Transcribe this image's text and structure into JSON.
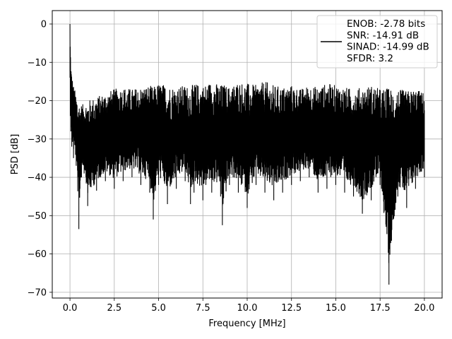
{
  "chart_data": {
    "type": "line",
    "xlabel": "Frequency [MHz]",
    "ylabel": "PSD [dB]",
    "xlim": [
      -1.0,
      21.0
    ],
    "ylim": [
      -71.5,
      3.5
    ],
    "x_ticks": [
      0.0,
      2.5,
      5.0,
      7.5,
      10.0,
      12.5,
      15.0,
      17.5,
      20.0
    ],
    "x_tick_labels": [
      "0.0",
      "2.5",
      "5.0",
      "7.5",
      "10.0",
      "12.5",
      "15.0",
      "17.5",
      "20.0"
    ],
    "y_ticks": [
      0,
      -10,
      -20,
      -30,
      -40,
      -50,
      -60,
      -70
    ],
    "y_tick_labels": [
      "0",
      "−10",
      "−20",
      "−30",
      "−40",
      "−50",
      "−60",
      "−70"
    ],
    "grid": true,
    "legend_position": "top-right",
    "legend_lines": [
      "ENOB: -2.78 bits",
      "SNR: -14.91 dB",
      "SINAD: -14.99 dB",
      "SFDR: 3.2"
    ],
    "series": [
      {
        "color": "#000000",
        "x": [
          0.0,
          0.02,
          0.05,
          0.1,
          0.2,
          0.35,
          0.5,
          0.65,
          0.8,
          1.0,
          1.5,
          2.0,
          2.5,
          3.0,
          3.5,
          4.0,
          4.5,
          4.7,
          5.0,
          5.5,
          6.0,
          6.5,
          6.8,
          7.0,
          7.5,
          8.0,
          8.5,
          8.6,
          9.0,
          9.5,
          10.0,
          10.5,
          11.0,
          11.5,
          12.0,
          12.5,
          13.0,
          13.5,
          14.0,
          14.5,
          15.0,
          15.5,
          16.0,
          16.5,
          17.0,
          17.5,
          18.0,
          18.5,
          19.0,
          19.5,
          20.0
        ],
        "upper": [
          0.0,
          -5.0,
          -10.0,
          -13.0,
          -16.0,
          -18.5,
          -20.0,
          -21.0,
          -21.0,
          -20.0,
          -19.0,
          -18.0,
          -17.0,
          -16.5,
          -17.0,
          -16.5,
          -16.0,
          -16.5,
          -15.5,
          -16.0,
          -16.5,
          -16.0,
          -16.5,
          -15.5,
          -16.0,
          -15.0,
          -16.0,
          -15.5,
          -16.5,
          -15.0,
          -15.5,
          -16.0,
          -15.0,
          -16.0,
          -16.5,
          -16.0,
          -17.0,
          -16.0,
          -16.5,
          -15.5,
          -16.0,
          -16.5,
          -17.0,
          -16.5,
          -16.0,
          -17.0,
          -16.5,
          -17.0,
          -17.5,
          -17.0,
          -18.0
        ],
        "lower": [
          -14.0,
          -24.0,
          -28.0,
          -32.0,
          -35.0,
          -37.0,
          -53.5,
          -40.0,
          -39.0,
          -47.5,
          -43.5,
          -41.0,
          -43.0,
          -41.0,
          -40.0,
          -42.0,
          -44.0,
          -51.0,
          -42.0,
          -47.0,
          -43.0,
          -41.0,
          -47.0,
          -44.0,
          -46.0,
          -44.0,
          -45.0,
          -52.5,
          -42.0,
          -44.0,
          -48.0,
          -42.0,
          -44.0,
          -46.0,
          -44.0,
          -42.0,
          -41.0,
          -40.0,
          -44.0,
          -43.0,
          -42.0,
          -44.0,
          -45.0,
          -49.5,
          -46.0,
          -42.0,
          -68.0,
          -45.0,
          -48.0,
          -43.0,
          -40.0
        ]
      }
    ]
  }
}
